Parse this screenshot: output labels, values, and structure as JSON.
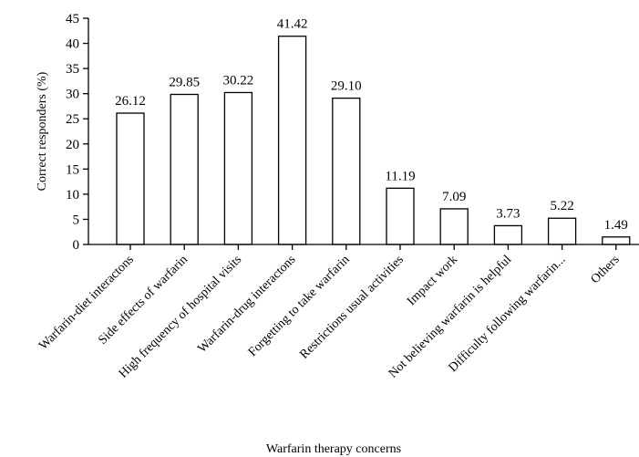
{
  "chart_data": {
    "type": "bar",
    "xlabel": "Warfarin therapy concerns",
    "ylabel": "Correct responders (%)",
    "ylim": [
      0,
      45
    ],
    "yticks": [
      0,
      5,
      10,
      15,
      20,
      25,
      30,
      35,
      40,
      45
    ],
    "grid": false,
    "categories": [
      "Warfarin-diet interactons",
      "Side effects of warfarin",
      "High frequency of hospital visits",
      "Warfarin-drug interactons",
      "Forgetting to take warfarin",
      "Restrictions usual activities",
      "Impact work",
      "Not believing warfarin is helpful",
      "Difficulty following warfarin...",
      "Others"
    ],
    "values": [
      26.12,
      29.85,
      30.22,
      41.42,
      29.1,
      11.19,
      7.09,
      3.73,
      5.22,
      1.49
    ],
    "value_labels": [
      "26.12",
      "29.85",
      "30.22",
      "41.42",
      "29.10",
      "11.19",
      "7.09",
      "3.73",
      "5.22",
      "1.49"
    ],
    "colors": {
      "bar_fill": "#ffffff",
      "bar_stroke": "#000000",
      "axis": "#000000"
    }
  }
}
